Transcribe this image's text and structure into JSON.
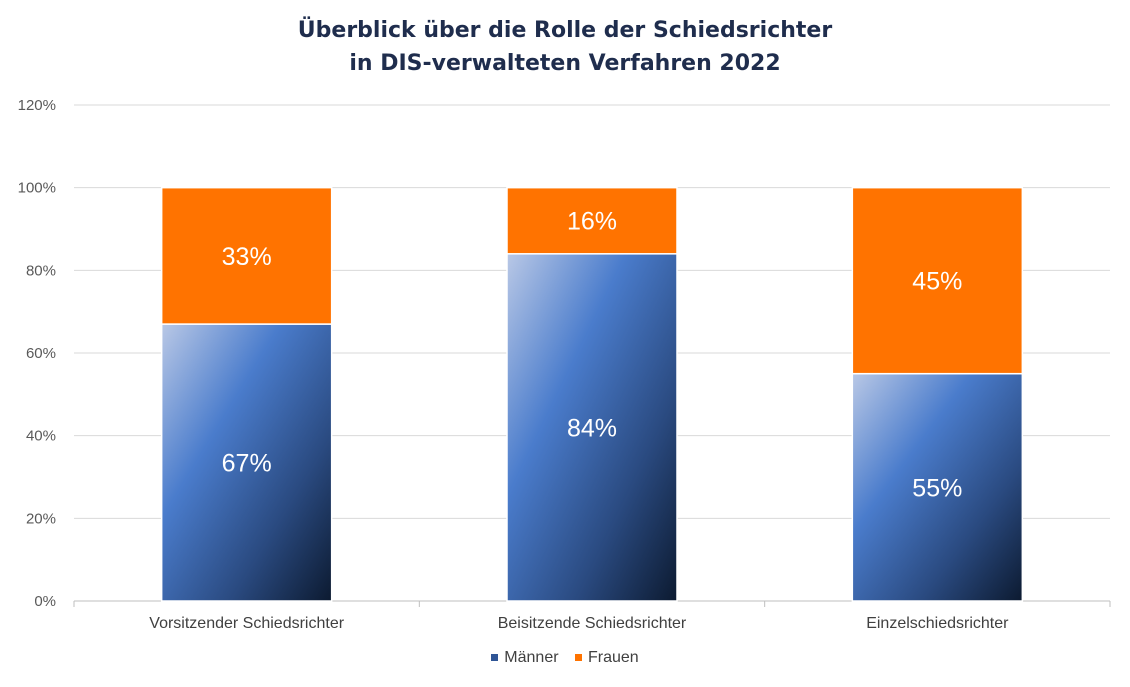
{
  "chart_data": {
    "type": "bar",
    "stacked": true,
    "title_line1": "Überblick über die Rolle der Schiedsrichter",
    "title_line2": "in DIS-verwalteten Verfahren 2022",
    "categories": [
      "Vorsitzender Schiedsrichter",
      "Beisitzende Schiedsrichter",
      "Einzelschiedsrichter"
    ],
    "series": [
      {
        "name": "Männer",
        "values": [
          67,
          84,
          55
        ],
        "labels": [
          "67%",
          "84%",
          "55%"
        ],
        "color": "#3d6fc4"
      },
      {
        "name": "Frauen",
        "values": [
          33,
          16,
          45
        ],
        "labels": [
          "33%",
          "16%",
          "45%"
        ],
        "color": "#ff7300"
      }
    ],
    "yticks": [
      0,
      20,
      40,
      60,
      80,
      100,
      120
    ],
    "ytick_labels": [
      "0%",
      "20%",
      "40%",
      "60%",
      "80%",
      "100%",
      "120%"
    ],
    "ylim": [
      0,
      120
    ],
    "grid": true,
    "legend_position": "bottom"
  }
}
